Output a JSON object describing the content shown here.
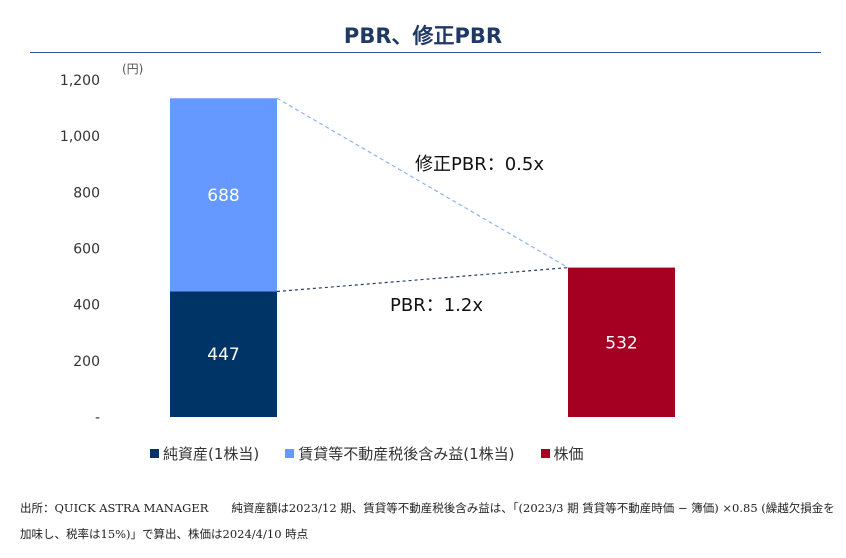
{
  "chart_data": {
    "type": "bar",
    "title": "PBR、修正PBR",
    "unit_label": "(円)",
    "yticks": [
      "-",
      "200",
      "400",
      "600",
      "800",
      "1,000",
      "1,200"
    ],
    "ylim": [
      0,
      1200
    ],
    "categories": [
      "",
      ""
    ],
    "series": [
      {
        "name": "純資産(1株当)",
        "color": "#003366",
        "values": [
          447,
          0
        ]
      },
      {
        "name": "賃貸等不動産税後含み益(1株当)",
        "color": "#6699ff",
        "values": [
          688,
          0
        ]
      },
      {
        "name": "株価",
        "color": "#a50021",
        "values": [
          0,
          532
        ]
      }
    ],
    "data_labels": [
      "447",
      "688",
      "532"
    ],
    "annotations": [
      "修正PBR：0.5x",
      "PBR：1.2x"
    ],
    "legend_position": "bottom",
    "grid": false
  },
  "source_note": "出所：QUICK ASTRA MANAGER　　純資産額は2023/12 期、賃貸等不動産税後含み益は、「(2023/3 期 賃貸等不動産時価 − 簿価) ×0.85 (繰越欠損金を加味し、税率は15%)」で算出、株価は2024/4/10 時点"
}
